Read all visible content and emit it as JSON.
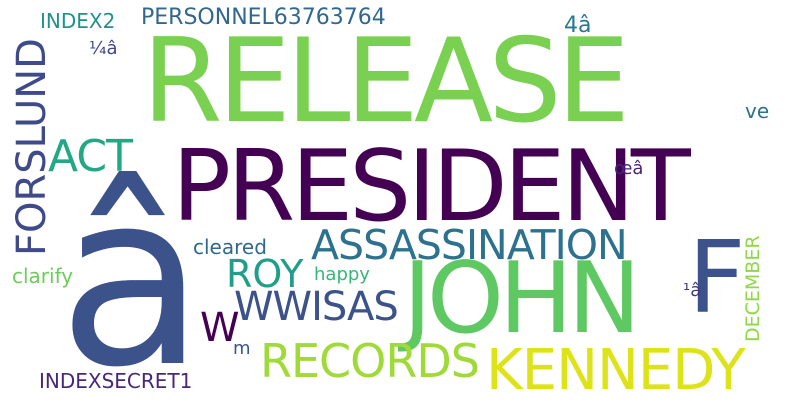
{
  "cloud": {
    "background": "#ffffff",
    "words": [
      {
        "key": "release",
        "text": "RELEASE",
        "color": "#7ad151"
      },
      {
        "key": "president",
        "text": "PRESIDENT",
        "color": "#440154"
      },
      {
        "key": "a_hat",
        "text": "â",
        "color": "#3b528b"
      },
      {
        "key": "john",
        "text": "JOHN",
        "color": "#5ec962"
      },
      {
        "key": "kennedy",
        "text": "KENNEDY",
        "color": "#dde318"
      },
      {
        "key": "f",
        "text": "F",
        "color": "#3b528b"
      },
      {
        "key": "assassination",
        "text": "ASSASSINATION",
        "color": "#2c728e"
      },
      {
        "key": "forslund",
        "text": "FORSLUND",
        "color": "#3e4a89"
      },
      {
        "key": "act",
        "text": "ACT",
        "color": "#22a884"
      },
      {
        "key": "records",
        "text": "RECORDS",
        "color": "#a0da39"
      },
      {
        "key": "wwisas",
        "text": "WWISAS",
        "color": "#3b528b"
      },
      {
        "key": "roy",
        "text": "ROY",
        "color": "#1f9e89"
      },
      {
        "key": "w",
        "text": "W",
        "color": "#440154"
      },
      {
        "key": "personnel",
        "text": "PERSONNEL63763764",
        "color": "#31688e"
      },
      {
        "key": "index2",
        "text": "INDEX2",
        "color": "#21918c"
      },
      {
        "key": "cleared",
        "text": "cleared",
        "color": "#31688e"
      },
      {
        "key": "clarify",
        "text": "clarify",
        "color": "#6ccd5a"
      },
      {
        "key": "happy",
        "text": "happy",
        "color": "#35b779"
      },
      {
        "key": "indexsecret",
        "text": "INDEXSECRET1",
        "color": "#482878"
      },
      {
        "key": "december",
        "text": "DECEMBER",
        "color": "#8fd744"
      },
      {
        "key": "quarter_a",
        "text": "¼â",
        "color": "#414487"
      },
      {
        "key": "four_a",
        "text": "4â",
        "color": "#2a788e"
      },
      {
        "key": "ve",
        "text": "ve",
        "color": "#2c728e"
      },
      {
        "key": "oe_a",
        "text": "œâ",
        "color": "#482475"
      },
      {
        "key": "one_a",
        "text": "¹â",
        "color": "#443983"
      },
      {
        "key": "m",
        "text": "m",
        "color": "#39568c"
      }
    ]
  }
}
